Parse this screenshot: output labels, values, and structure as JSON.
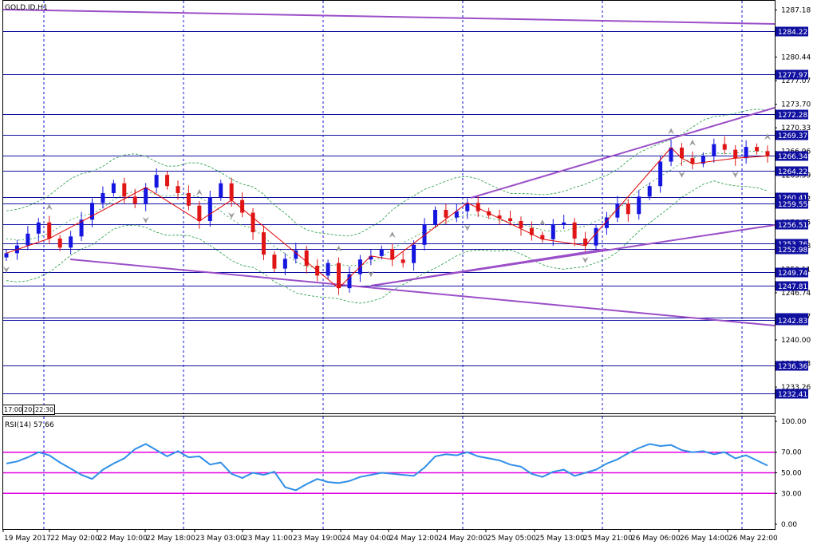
{
  "header": {
    "symbol": "GOLD.ID,H1"
  },
  "mini_labels": [
    "17:00",
    "20:",
    "22:30"
  ],
  "rsi": {
    "label": "RSI(14) 57.66"
  },
  "colors": {
    "bull": "#1515e0",
    "bear": "#e01515",
    "hline": "#1010a0",
    "trend": "#9b4fc8",
    "zigzag": "#e00000",
    "band": "#1f9a3f",
    "rsi_line": "#2f8fe8",
    "rsi_level": "#e000e0",
    "grid": "#1515d0",
    "tag_bg": "#1010a0"
  },
  "chart_data": [
    {
      "type": "candlestick",
      "title": "GOLD.ID,H1",
      "ylim": [
        1229.5,
        1288.5
      ],
      "y_ticks": [
        1287.18,
        1280.44,
        1277.07,
        1273.7,
        1270.33,
        1266.96,
        1263.59,
        1260.22,
        1256.85,
        1253.48,
        1250.11,
        1246.74,
        1243.37,
        1240.0,
        1236.63,
        1233.26
      ],
      "horizontal_levels": [
        1284.22,
        1277.97,
        1272.28,
        1269.37,
        1266.34,
        1264.22,
        1260.41,
        1259.55,
        1256.51,
        1253.76,
        1252.98,
        1249.74,
        1247.81,
        1243.2,
        1242.83,
        1236.36,
        1232.41
      ],
      "price_tags": [
        "1284.22",
        "1277.97",
        "1272.28",
        "1269.37",
        "1266.34",
        "1264.22",
        "1260.41",
        "1259.55",
        "1256.51",
        "1253.76",
        "1252.98",
        "1249.74",
        "1247.81",
        "1243.20",
        "1242.83",
        "1236.36",
        "1232.41"
      ],
      "x_labels": [
        "19 May 2017",
        "22 May 02:00",
        "22 May 10:00",
        "22 May 18:00",
        "23 May 03:00",
        "23 May 11:00",
        "23 May 19:00",
        "24 May 04:00",
        "24 May 12:00",
        "24 May 20:00",
        "25 May 05:00",
        "25 May 13:00",
        "25 May 21:00",
        "26 May 06:00",
        "26 May 14:00",
        "26 May 22:00"
      ],
      "close_path": [
        1252.4,
        1253.5,
        1255.2,
        1256.8,
        1254.5,
        1253.2,
        1254.8,
        1257.2,
        1259.6,
        1261.0,
        1262.4,
        1260.5,
        1259.5,
        1261.8,
        1263.6,
        1262.0,
        1261.0,
        1259.2,
        1257.0,
        1260.4,
        1262.4,
        1260.0,
        1258.2,
        1255.4,
        1252.2,
        1250.2,
        1251.6,
        1252.8,
        1250.6,
        1249.2,
        1251.0,
        1247.4,
        1249.4,
        1251.5,
        1252.0,
        1253.0,
        1251.5,
        1251.0,
        1253.6,
        1256.5,
        1258.6,
        1257.5,
        1258.4,
        1259.6,
        1258.4,
        1257.8,
        1257.4,
        1257.0,
        1256.0,
        1255.0,
        1254.4,
        1256.5,
        1256.8,
        1254.5,
        1253.5,
        1256.0,
        1257.5,
        1259.5,
        1258.0,
        1260.5,
        1262.0,
        1265.5,
        1267.5,
        1266.0,
        1265.2,
        1266.3,
        1268.0,
        1267.2,
        1266.0,
        1267.6,
        1267.0,
        1266.3
      ],
      "rsi_path": [
        59,
        61,
        65,
        70,
        67,
        60,
        54,
        48,
        44,
        53,
        59,
        64,
        73,
        78,
        72,
        66,
        71,
        65,
        66,
        58,
        60,
        49,
        45,
        50,
        48,
        51,
        36,
        33,
        39,
        44,
        41,
        40,
        42,
        46,
        48,
        50,
        49,
        48,
        47,
        55,
        66,
        68,
        67,
        70,
        66,
        64,
        62,
        58,
        56,
        49,
        46,
        51,
        53,
        47,
        50,
        53,
        59,
        63,
        69,
        74,
        78,
        76,
        77,
        72,
        70,
        71,
        68,
        70,
        64,
        67,
        62,
        57
      ],
      "rsi_ticks": [
        "100.00",
        "70.00",
        "50.00",
        "30.00",
        "0.00"
      ],
      "rsi_levels": [
        70,
        50,
        30
      ],
      "rsi_ylim": [
        0,
        100
      ]
    }
  ]
}
